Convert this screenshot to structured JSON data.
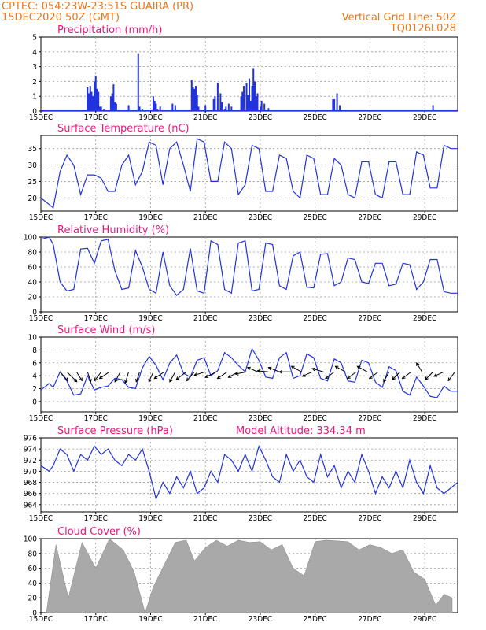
{
  "header": {
    "station": "CPTEC:  054:23W-23:51S  GUAIRA (PR)",
    "datetime": "15DEC2020 50Z (GMT)",
    "grid_note": "Vertical Grid Line: 50Z",
    "run_code": "TQ0126L028"
  },
  "colors": {
    "header": "#e8761c",
    "title": "#e6197f",
    "line": "#2233dd",
    "cloud": "#a9a9a9"
  },
  "chart_data": [
    {
      "id": "precip",
      "type": "bar",
      "title": "Precipitation (mm/h)",
      "x_start_day": 15,
      "x_days": 15.2,
      "xticks": [
        "15DEC",
        "17DEC",
        "19DEC",
        "21DEC",
        "23DEC",
        "25DEC",
        "27DEC",
        "29DEC"
      ],
      "yticks": [
        0,
        1,
        2,
        3,
        4,
        5
      ],
      "ylim": [
        0,
        5
      ],
      "x": [
        16.7,
        16.75,
        16.8,
        16.85,
        16.9,
        16.95,
        17.0,
        17.05,
        17.1,
        17.15,
        17.2,
        17.3,
        17.55,
        17.6,
        17.65,
        17.7,
        17.75,
        18.2,
        18.55,
        18.6,
        18.7,
        19.1,
        19.15,
        19.2,
        19.25,
        19.35,
        19.8,
        19.9,
        20.5,
        20.55,
        20.6,
        20.65,
        20.7,
        20.75,
        21.0,
        21.3,
        21.35,
        21.45,
        21.55,
        21.6,
        21.7,
        21.75,
        21.85,
        21.95,
        22.3,
        22.35,
        22.4,
        22.5,
        22.55,
        22.6,
        22.65,
        22.7,
        22.75,
        22.8,
        22.85,
        22.9,
        23.0,
        23.05,
        23.15,
        23.3,
        25.65,
        25.7,
        25.8,
        25.9,
        29.3
      ],
      "values": [
        1.6,
        1.2,
        1.7,
        1.3,
        1.0,
        2.0,
        2.4,
        1.5,
        1.3,
        0.3,
        0.3,
        0.1,
        1.0,
        1.2,
        1.8,
        0.6,
        0.5,
        0.4,
        3.9,
        0.3,
        0.1,
        1.0,
        0.7,
        0.5,
        0.1,
        0.3,
        0.5,
        0.4,
        2.1,
        1.6,
        1.5,
        1.7,
        1.1,
        0.3,
        0.4,
        0.8,
        1.0,
        1.9,
        1.2,
        0.6,
        0.1,
        0.3,
        0.5,
        0.3,
        1.0,
        1.3,
        1.7,
        1.9,
        1.1,
        2.2,
        0.7,
        1.7,
        2.9,
        2.0,
        1.0,
        1.2,
        0.3,
        0.7,
        0.5,
        0.2,
        0.8,
        0.8,
        1.2,
        0.4,
        0.4
      ]
    },
    {
      "id": "temp",
      "type": "line",
      "title": "Surface Temperature (nC)",
      "x_start_day": 15,
      "x_days": 15.2,
      "xticks": [
        "15DEC",
        "17DEC",
        "19DEC",
        "21DEC",
        "23DEC",
        "25DEC",
        "27DEC",
        "29DEC"
      ],
      "yticks": [
        20,
        25,
        30,
        35
      ],
      "ylim": [
        16,
        39
      ],
      "x": [
        15.0,
        15.3,
        15.45,
        15.7,
        15.95,
        16.2,
        16.45,
        16.7,
        16.95,
        17.2,
        17.45,
        17.7,
        17.95,
        18.2,
        18.45,
        18.7,
        18.95,
        19.2,
        19.45,
        19.7,
        19.95,
        20.2,
        20.45,
        20.7,
        20.95,
        21.2,
        21.45,
        21.7,
        21.95,
        22.2,
        22.45,
        22.7,
        22.95,
        23.2,
        23.45,
        23.7,
        23.95,
        24.2,
        24.45,
        24.7,
        24.95,
        25.2,
        25.45,
        25.7,
        25.95,
        26.2,
        26.45,
        26.7,
        26.95,
        27.2,
        27.45,
        27.7,
        27.95,
        28.2,
        28.45,
        28.7,
        28.95,
        29.2,
        29.45,
        29.7,
        29.95,
        30.2
      ],
      "values": [
        20,
        18,
        17,
        28,
        33,
        30,
        21,
        27,
        27,
        26,
        22,
        22,
        30,
        33,
        24,
        28,
        37,
        36,
        24,
        35,
        37,
        30,
        22,
        38,
        37,
        25,
        25,
        37,
        35,
        21,
        24,
        36,
        35,
        22,
        22,
        33,
        32,
        22,
        20,
        33,
        32,
        21,
        21,
        32,
        30,
        21,
        20,
        31,
        31,
        21,
        20,
        31,
        31,
        21,
        21,
        34,
        33,
        23,
        23,
        36,
        35,
        35
      ]
    },
    {
      "id": "rh",
      "type": "line",
      "title": "Relative Humidity (%)",
      "x_start_day": 15,
      "x_days": 15.2,
      "xticks": [
        "15DEC",
        "17DEC",
        "19DEC",
        "21DEC",
        "23DEC",
        "25DEC",
        "27DEC",
        "29DEC"
      ],
      "yticks": [
        0,
        20,
        40,
        60,
        80,
        100
      ],
      "ylim": [
        0,
        100
      ],
      "x": [
        15.0,
        15.3,
        15.45,
        15.7,
        15.95,
        16.2,
        16.45,
        16.7,
        16.95,
        17.2,
        17.45,
        17.7,
        17.95,
        18.2,
        18.45,
        18.7,
        18.95,
        19.2,
        19.45,
        19.7,
        19.95,
        20.2,
        20.45,
        20.7,
        20.95,
        21.2,
        21.45,
        21.7,
        21.95,
        22.2,
        22.45,
        22.7,
        22.95,
        23.2,
        23.45,
        23.7,
        23.95,
        24.2,
        24.45,
        24.7,
        24.95,
        25.2,
        25.45,
        25.7,
        25.95,
        26.2,
        26.45,
        26.7,
        26.95,
        27.2,
        27.45,
        27.7,
        27.95,
        28.2,
        28.45,
        28.7,
        28.95,
        29.2,
        29.45,
        29.7,
        29.95,
        30.2
      ],
      "values": [
        97,
        100,
        90,
        40,
        28,
        30,
        84,
        85,
        65,
        95,
        97,
        55,
        30,
        32,
        82,
        60,
        30,
        25,
        80,
        35,
        22,
        30,
        85,
        28,
        25,
        95,
        90,
        30,
        25,
        92,
        95,
        28,
        30,
        92,
        90,
        35,
        30,
        75,
        80,
        33,
        32,
        77,
        78,
        35,
        40,
        72,
        70,
        40,
        38,
        65,
        65,
        35,
        37,
        65,
        63,
        30,
        40,
        70,
        70,
        27,
        25,
        25
      ]
    },
    {
      "id": "wind",
      "type": "line",
      "title": "Surface Wind (m/s)",
      "x_start_day": 15,
      "x_days": 15.2,
      "xticks": [
        "15DEC",
        "17DEC",
        "19DEC",
        "21DEC",
        "23DEC",
        "25DEC",
        "27DEC",
        "29DEC"
      ],
      "yticks": [
        0,
        2,
        4,
        6,
        8,
        10
      ],
      "ylim": [
        -1.6,
        10
      ],
      "x": [
        15.0,
        15.3,
        15.45,
        15.7,
        15.95,
        16.2,
        16.45,
        16.7,
        16.95,
        17.2,
        17.45,
        17.7,
        17.95,
        18.2,
        18.45,
        18.7,
        18.95,
        19.2,
        19.45,
        19.7,
        19.95,
        20.2,
        20.45,
        20.7,
        20.95,
        21.2,
        21.45,
        21.7,
        21.95,
        22.2,
        22.45,
        22.7,
        22.95,
        23.2,
        23.45,
        23.7,
        23.95,
        24.2,
        24.45,
        24.7,
        24.95,
        25.2,
        25.45,
        25.7,
        25.95,
        26.2,
        26.45,
        26.7,
        26.95,
        27.2,
        27.45,
        27.7,
        27.95,
        28.2,
        28.45,
        28.7,
        28.95,
        29.2,
        29.45,
        29.7,
        29.95,
        30.2
      ],
      "values": [
        1.8,
        2.8,
        2.2,
        4.6,
        3.2,
        1.0,
        1.2,
        4.0,
        1.8,
        2.2,
        2.4,
        3.6,
        3.4,
        2.2,
        2.0,
        5.2,
        7.0,
        5.6,
        3.4,
        6.0,
        7.2,
        4.4,
        3.8,
        6.4,
        6.8,
        4.0,
        4.8,
        7.6,
        6.8,
        5.6,
        4.6,
        8.2,
        6.4,
        3.8,
        3.6,
        6.8,
        7.6,
        3.6,
        4.0,
        7.4,
        6.8,
        3.6,
        3.2,
        6.6,
        6.0,
        3.2,
        3.0,
        6.4,
        6.0,
        3.0,
        2.2,
        5.4,
        4.8,
        1.6,
        1.0,
        3.8,
        2.4,
        0.8,
        0.6,
        2.4,
        1.6,
        1.6
      ],
      "arrows": [
        [
          15.7,
          0.7,
          -0.8
        ],
        [
          15.95,
          0.9,
          -0.9
        ],
        [
          16.3,
          0.5,
          -0.8
        ],
        [
          16.7,
          0.3,
          -0.9
        ],
        [
          17.2,
          -0.6,
          -0.8
        ],
        [
          17.5,
          -0.9,
          -0.6
        ],
        [
          17.9,
          -0.5,
          -0.9
        ],
        [
          18.2,
          -0.3,
          -1.0
        ],
        [
          18.6,
          -0.3,
          -0.9
        ],
        [
          19.1,
          -0.4,
          -0.9
        ],
        [
          19.5,
          -0.9,
          -0.6
        ],
        [
          19.9,
          -0.5,
          -0.9
        ],
        [
          20.3,
          -0.9,
          -0.7
        ],
        [
          20.6,
          -0.7,
          -0.8
        ],
        [
          21.0,
          -1.0,
          -0.3
        ],
        [
          21.4,
          -1.0,
          -0.5
        ],
        [
          21.8,
          -0.9,
          -0.6
        ],
        [
          22.2,
          -0.9,
          -0.5
        ],
        [
          22.5,
          -1.0,
          -0.2
        ],
        [
          22.9,
          -0.9,
          0.4
        ],
        [
          23.3,
          -1.0,
          0.1
        ],
        [
          23.7,
          -1.0,
          0.4
        ],
        [
          24.1,
          -1.0,
          0.0
        ],
        [
          24.5,
          -0.9,
          0.5
        ],
        [
          24.9,
          -0.9,
          -0.4
        ],
        [
          25.3,
          -1.0,
          0.3
        ],
        [
          25.7,
          -0.8,
          -0.6
        ],
        [
          26.1,
          -0.9,
          0.5
        ],
        [
          26.5,
          -0.8,
          -0.6
        ],
        [
          26.9,
          -0.9,
          0.5
        ],
        [
          27.3,
          -0.8,
          -0.6
        ],
        [
          27.7,
          -0.5,
          -0.9
        ],
        [
          28.1,
          -0.7,
          -0.7
        ],
        [
          28.5,
          -0.8,
          -0.6
        ],
        [
          28.9,
          -0.5,
          0.8
        ],
        [
          29.3,
          -0.7,
          -0.7
        ],
        [
          29.7,
          -0.9,
          -0.4
        ],
        [
          30.1,
          -0.6,
          -0.8
        ]
      ]
    },
    {
      "id": "pressure",
      "type": "line",
      "title": "Surface Pressure (hPa)",
      "annotation": "Model Altitude: 334.34 m",
      "x_start_day": 15,
      "x_days": 15.2,
      "xticks": [
        "15DEC",
        "17DEC",
        "19DEC",
        "21DEC",
        "23DEC",
        "25DEC",
        "27DEC",
        "29DEC"
      ],
      "yticks": [
        964,
        966,
        968,
        970,
        972,
        974,
        976
      ],
      "ylim": [
        962.7,
        976
      ],
      "x": [
        15.0,
        15.3,
        15.45,
        15.7,
        15.95,
        16.2,
        16.45,
        16.7,
        16.95,
        17.2,
        17.45,
        17.7,
        17.95,
        18.2,
        18.45,
        18.7,
        18.95,
        19.2,
        19.45,
        19.7,
        19.95,
        20.2,
        20.45,
        20.7,
        20.95,
        21.2,
        21.45,
        21.7,
        21.95,
        22.2,
        22.45,
        22.7,
        22.95,
        23.2,
        23.45,
        23.7,
        23.95,
        24.2,
        24.45,
        24.7,
        24.95,
        25.2,
        25.45,
        25.7,
        25.95,
        26.2,
        26.45,
        26.7,
        26.95,
        27.2,
        27.45,
        27.7,
        27.95,
        28.2,
        28.45,
        28.7,
        28.95,
        29.2,
        29.45,
        29.7,
        29.95,
        30.2
      ],
      "values": [
        971,
        970,
        971,
        974,
        973,
        970,
        973,
        972,
        974.5,
        973,
        974,
        972,
        971,
        973,
        972,
        974,
        970,
        965,
        968,
        966,
        969,
        967,
        970,
        966,
        967,
        970,
        968,
        973,
        972,
        970,
        973,
        970,
        974.5,
        972,
        969,
        968,
        973,
        970,
        972,
        969,
        968,
        973,
        969,
        971,
        967,
        970,
        968,
        973,
        970,
        966,
        969,
        967,
        970,
        967,
        972,
        968,
        966,
        971,
        967,
        966,
        967,
        968
      ]
    },
    {
      "id": "cloud",
      "type": "bar",
      "title": "Cloud Cover (%)",
      "x_start_day": 15,
      "x_days": 15.2,
      "xticks": [
        "15DEC",
        "17DEC",
        "19DEC",
        "21DEC",
        "23DEC",
        "25DEC",
        "27DEC",
        "29DEC"
      ],
      "yticks": [
        0,
        20,
        40,
        60,
        80,
        100
      ],
      "ylim": [
        0,
        100
      ],
      "x": [
        15.2,
        15.55,
        16.0,
        16.5,
        17.0,
        17.5,
        18.0,
        18.4,
        18.8,
        19.1,
        19.5,
        19.9,
        20.3,
        20.6,
        21.0,
        21.4,
        21.8,
        22.2,
        22.6,
        23.0,
        23.4,
        23.8,
        24.2,
        24.6,
        25.0,
        25.4,
        25.8,
        26.2,
        26.6,
        27.0,
        27.4,
        27.8,
        28.2,
        28.6,
        29.0,
        29.4,
        29.7,
        30.0
      ],
      "values": [
        0,
        92,
        20,
        95,
        60,
        100,
        85,
        55,
        0,
        35,
        65,
        95,
        98,
        70,
        88,
        98,
        90,
        98,
        95,
        96,
        85,
        92,
        60,
        50,
        96,
        98,
        97,
        96,
        85,
        92,
        88,
        80,
        85,
        55,
        45,
        10,
        25,
        20
      ]
    }
  ]
}
